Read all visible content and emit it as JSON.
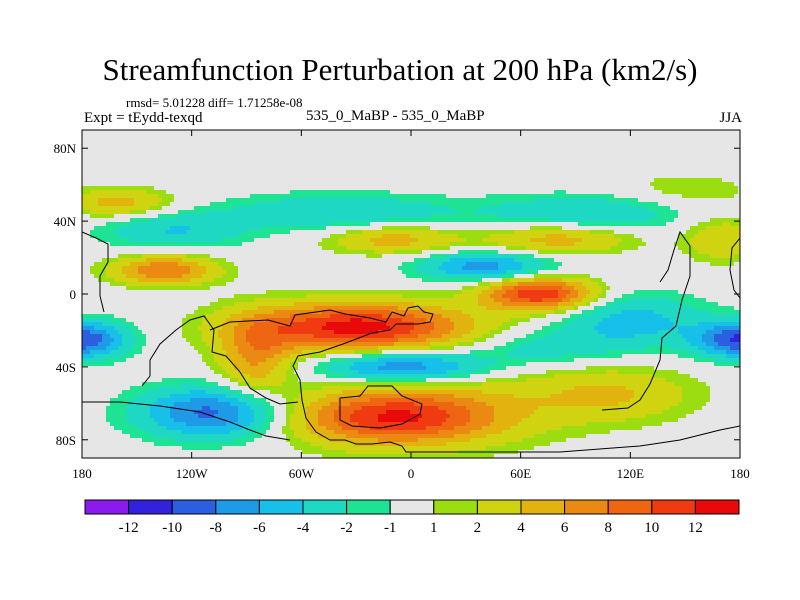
{
  "title": "Streamfunction Perturbation at 200 hPa (km2/s)",
  "stats_line": "rmsd= 5.01228 diff= 1.71258e-08",
  "experiment_label": "Expt = tEydd-texqd",
  "cases_label": "535_0_MaBP - 535_0_MaBP",
  "season_label": "JJA",
  "map": {
    "lon_range": [
      -180,
      180
    ],
    "lat_range": [
      -90,
      90
    ],
    "x_ticks": [
      {
        "value": -180,
        "label": "180"
      },
      {
        "value": -120,
        "label": "120W"
      },
      {
        "value": -60,
        "label": "60W"
      },
      {
        "value": 0,
        "label": "0"
      },
      {
        "value": 60,
        "label": "60E"
      },
      {
        "value": 120,
        "label": "120E"
      },
      {
        "value": 180,
        "label": "180"
      }
    ],
    "y_ticks": [
      {
        "value": 80,
        "label": "80N"
      },
      {
        "value": 40,
        "label": "40N"
      },
      {
        "value": 0,
        "label": "0"
      },
      {
        "value": -40,
        "label": "40S"
      },
      {
        "value": -80,
        "label": "80S"
      }
    ],
    "blobs": [
      {
        "lon": -180,
        "lat": -25,
        "v": -10,
        "a": 24,
        "b": 10
      },
      {
        "lon": 180,
        "lat": -25,
        "v": -10,
        "a": 24,
        "b": 10
      },
      {
        "lon": -108,
        "lat": -65,
        "v": -9,
        "a": 40,
        "b": 14
      },
      {
        "lon": -5,
        "lat": -40,
        "v": -9,
        "a": 45,
        "b": 9
      },
      {
        "lon": 120,
        "lat": -15,
        "v": -5,
        "a": 40,
        "b": 15
      },
      {
        "lon": 70,
        "lat": -30,
        "v": -3,
        "a": 40,
        "b": 10
      },
      {
        "lon": 40,
        "lat": 15,
        "v": -7,
        "a": 35,
        "b": 8
      },
      {
        "lon": -40,
        "lat": 45,
        "v": -4,
        "a": 60,
        "b": 10
      },
      {
        "lon": 100,
        "lat": 45,
        "v": -4,
        "a": 60,
        "b": 10
      },
      {
        "lon": -130,
        "lat": 35,
        "v": -4,
        "a": 40,
        "b": 10
      },
      {
        "lon": -30,
        "lat": -18,
        "v": 13,
        "a": 60,
        "b": 13
      },
      {
        "lon": -85,
        "lat": -35,
        "v": 6,
        "a": 20,
        "b": 20
      },
      {
        "lon": 70,
        "lat": 0,
        "v": 12,
        "a": 30,
        "b": 9
      },
      {
        "lon": -10,
        "lat": -68,
        "v": 10,
        "a": 55,
        "b": 14
      },
      {
        "lon": 110,
        "lat": -55,
        "v": 4,
        "a": 45,
        "b": 15
      },
      {
        "lon": -135,
        "lat": 13,
        "v": 8,
        "a": 28,
        "b": 8
      },
      {
        "lon": -160,
        "lat": 50,
        "v": 5,
        "a": 28,
        "b": 8
      },
      {
        "lon": -10,
        "lat": 30,
        "v": 5,
        "a": 35,
        "b": 8
      },
      {
        "lon": 80,
        "lat": 30,
        "v": 5,
        "a": 40,
        "b": 8
      },
      {
        "lon": 170,
        "lat": 30,
        "v": 4,
        "a": 20,
        "b": 12
      },
      {
        "lon": 150,
        "lat": 55,
        "v": 2,
        "a": 40,
        "b": 12
      },
      {
        "lon": 10,
        "lat": -60,
        "v": 3,
        "a": 75,
        "b": 25
      }
    ]
  },
  "colorbar": {
    "colors": [
      "#8c1aee",
      "#3322dd",
      "#2b5fe0",
      "#1f9ae6",
      "#16c0e9",
      "#1ed8c4",
      "#1ee394",
      "#e6e6e6",
      "#9bdd11",
      "#cfd310",
      "#e2b30f",
      "#ea8a12",
      "#ee6512",
      "#f03a12",
      "#e80a0a"
    ],
    "levels": [
      -12,
      -10,
      -8,
      -6,
      -4,
      -2,
      -1,
      1,
      2,
      4,
      6,
      8,
      10,
      12
    ],
    "labels": [
      "-12",
      "-10",
      "-8",
      "-6",
      "-4",
      "-2",
      "-1",
      "1",
      "2",
      "4",
      "6",
      "8",
      "10",
      "12"
    ]
  }
}
